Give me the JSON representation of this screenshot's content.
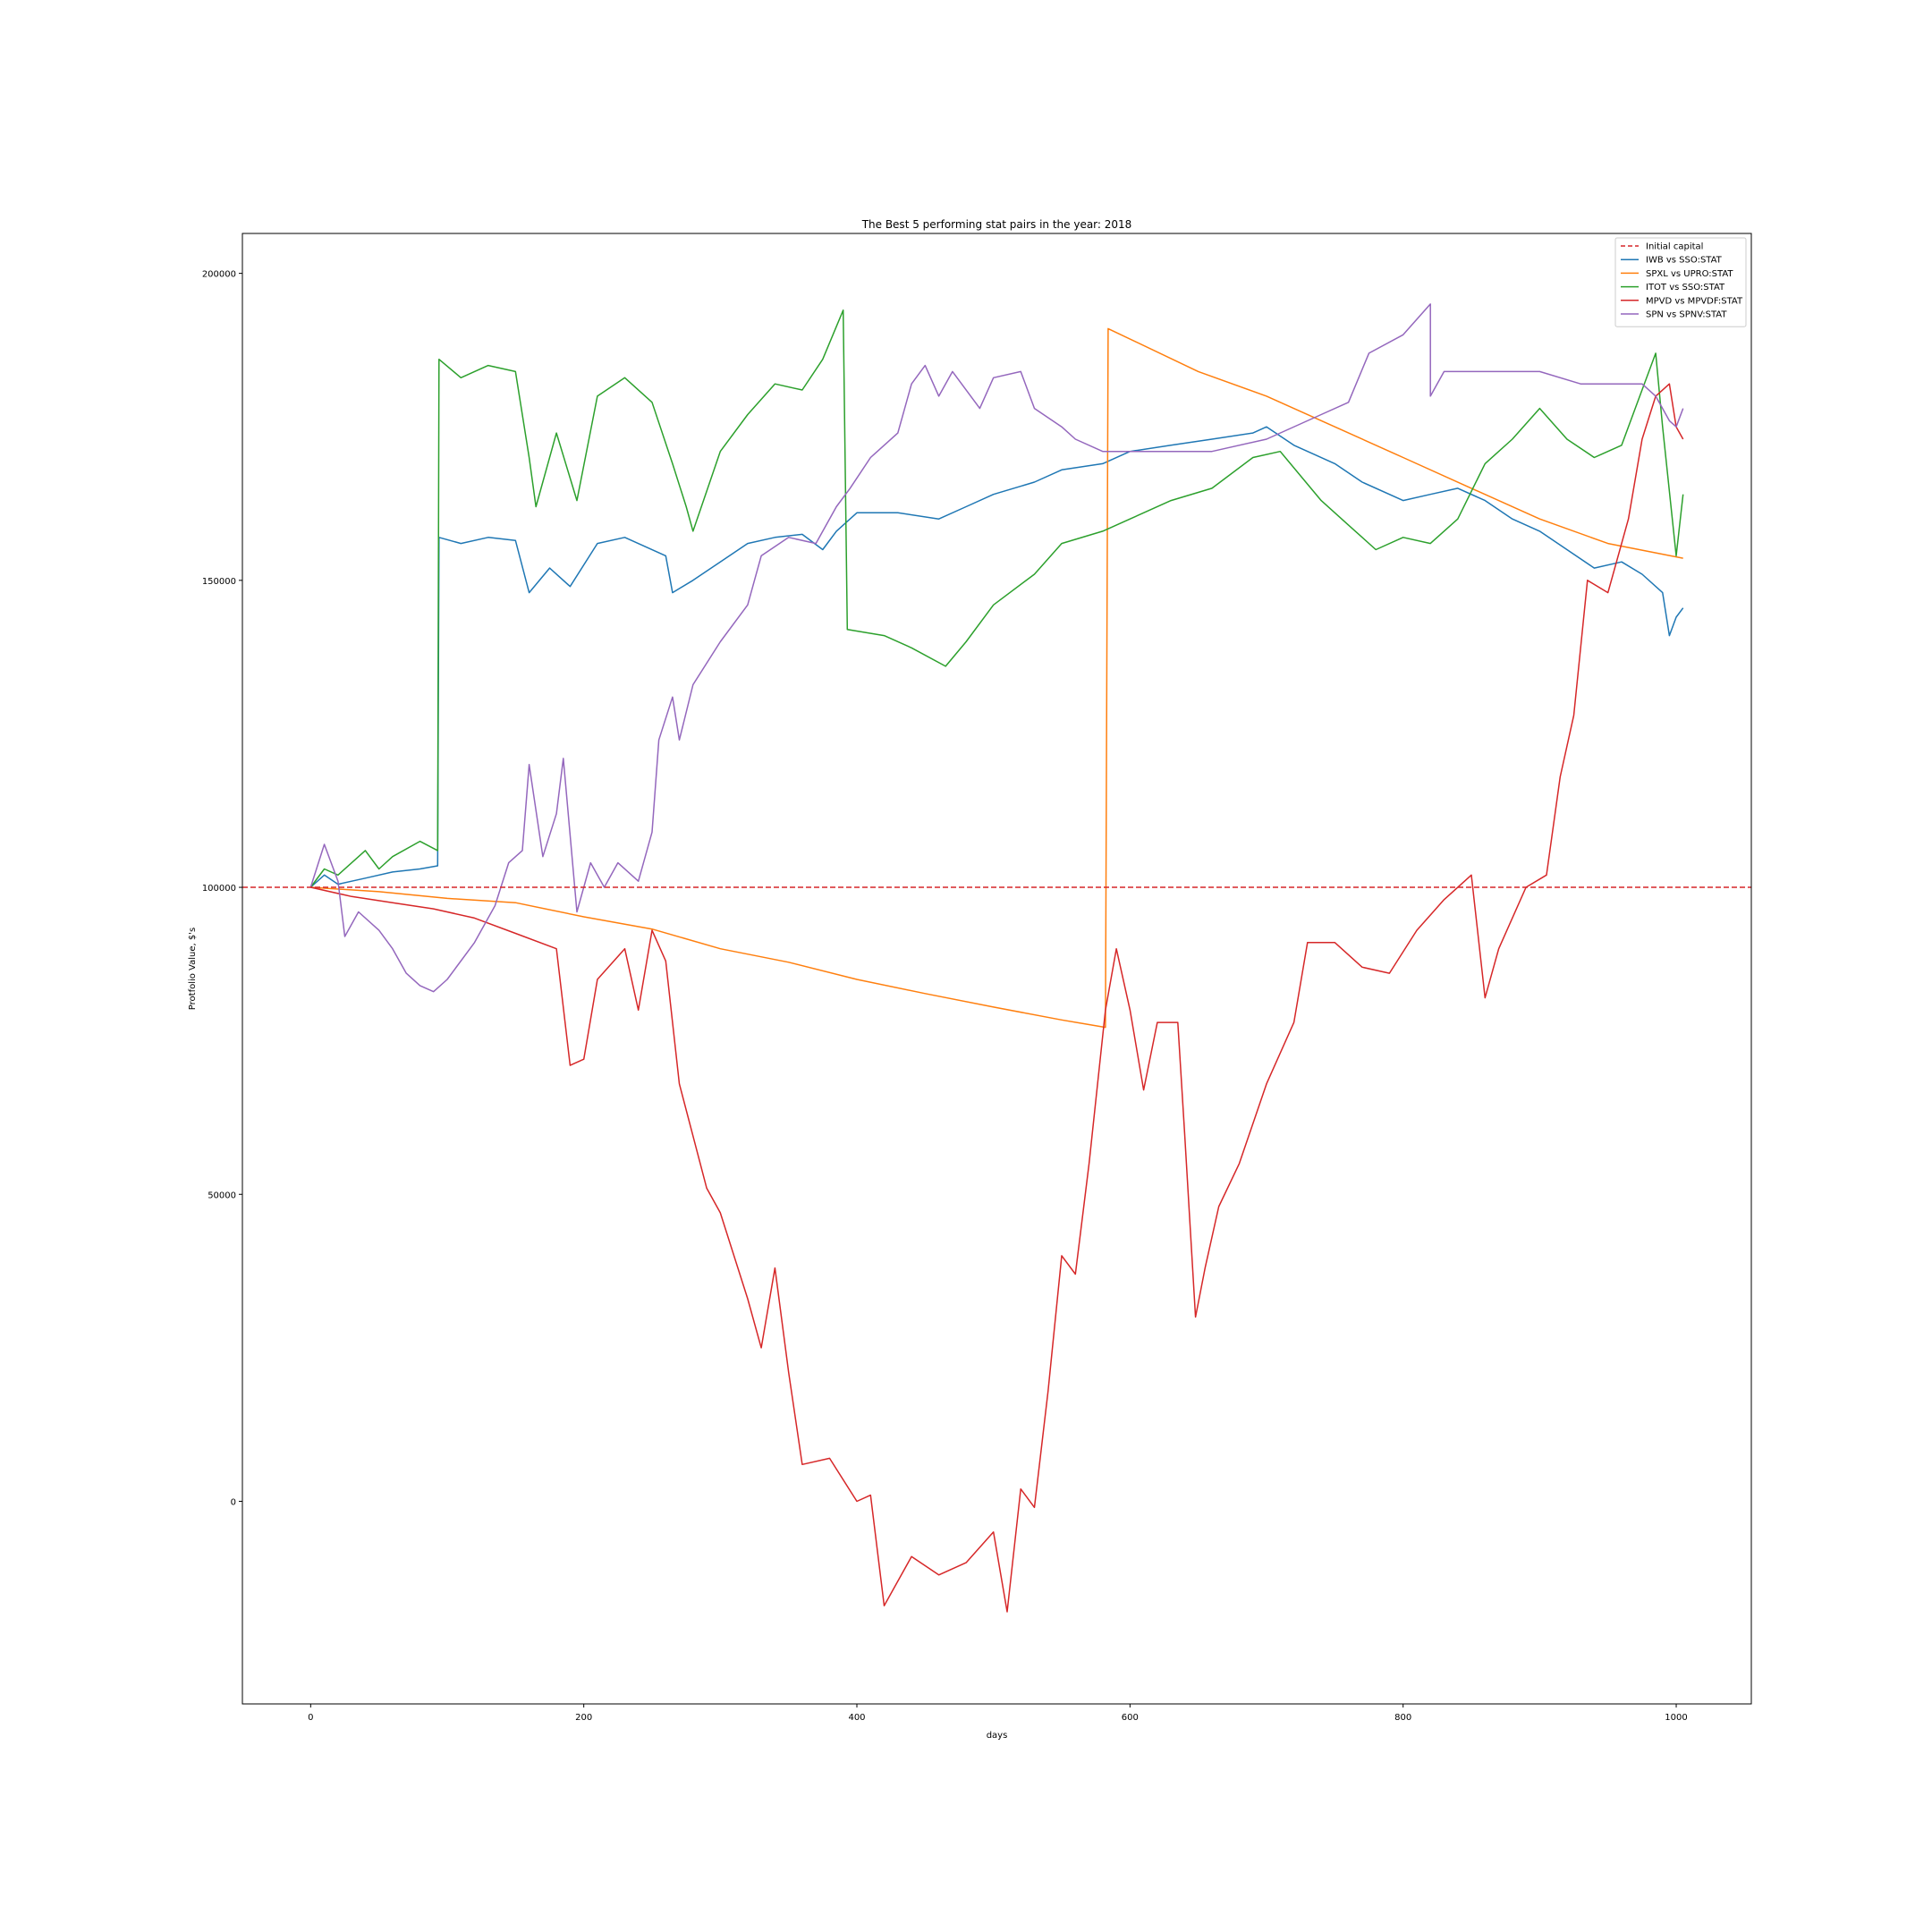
{
  "chart_data": {
    "type": "line",
    "title": "The Best 5 performing stat pairs in the year: 2018",
    "xlabel": "days",
    "ylabel": "Protfolio Value, $'s",
    "xlim": [
      -50,
      1055
    ],
    "ylim": [
      -33000,
      206500
    ],
    "xticks": [
      0,
      200,
      400,
      600,
      800,
      1000
    ],
    "yticks": [
      0,
      50000,
      100000,
      150000,
      200000
    ],
    "grid": false,
    "legend_position": "top-right",
    "reference_line": {
      "name": "Initial capital",
      "y": 100000,
      "color": "#d62728",
      "style": "dashed"
    },
    "series": [
      {
        "name": "IWB vs SSO:STAT",
        "color": "#1f77b4",
        "points": [
          [
            0,
            100000
          ],
          [
            10,
            102000
          ],
          [
            20,
            100500
          ],
          [
            40,
            101500
          ],
          [
            60,
            102500
          ],
          [
            80,
            103000
          ],
          [
            93,
            103500
          ],
          [
            94,
            157000
          ],
          [
            110,
            156000
          ],
          [
            130,
            157000
          ],
          [
            150,
            156500
          ],
          [
            160,
            148000
          ],
          [
            175,
            152000
          ],
          [
            190,
            149000
          ],
          [
            210,
            156000
          ],
          [
            230,
            157000
          ],
          [
            260,
            154000
          ],
          [
            265,
            148000
          ],
          [
            280,
            150000
          ],
          [
            300,
            153000
          ],
          [
            320,
            156000
          ],
          [
            340,
            157000
          ],
          [
            360,
            157500
          ],
          [
            375,
            155000
          ],
          [
            385,
            158000
          ],
          [
            400,
            161000
          ],
          [
            430,
            161000
          ],
          [
            460,
            160000
          ],
          [
            480,
            162000
          ],
          [
            500,
            164000
          ],
          [
            530,
            166000
          ],
          [
            550,
            168000
          ],
          [
            580,
            169000
          ],
          [
            600,
            171000
          ],
          [
            630,
            172000
          ],
          [
            660,
            173000
          ],
          [
            690,
            174000
          ],
          [
            700,
            175000
          ],
          [
            720,
            172000
          ],
          [
            750,
            169000
          ],
          [
            770,
            166000
          ],
          [
            800,
            163000
          ],
          [
            820,
            164000
          ],
          [
            840,
            165000
          ],
          [
            860,
            163000
          ],
          [
            880,
            160000
          ],
          [
            900,
            158000
          ],
          [
            920,
            155000
          ],
          [
            940,
            152000
          ],
          [
            960,
            153000
          ],
          [
            975,
            151000
          ],
          [
            990,
            148000
          ],
          [
            995,
            141000
          ],
          [
            1000,
            144000
          ],
          [
            1005,
            145500
          ]
        ]
      },
      {
        "name": "SPXL vs UPRO:STAT",
        "color": "#ff7f0e",
        "points": [
          [
            0,
            100000
          ],
          [
            50,
            99300
          ],
          [
            100,
            98200
          ],
          [
            150,
            97500
          ],
          [
            200,
            95200
          ],
          [
            250,
            93200
          ],
          [
            300,
            90000
          ],
          [
            350,
            87800
          ],
          [
            400,
            85000
          ],
          [
            450,
            82700
          ],
          [
            500,
            80500
          ],
          [
            550,
            78400
          ],
          [
            582,
            77200
          ],
          [
            584,
            191000
          ],
          [
            650,
            184000
          ],
          [
            700,
            180000
          ],
          [
            750,
            175000
          ],
          [
            800,
            170000
          ],
          [
            850,
            165000
          ],
          [
            900,
            160000
          ],
          [
            950,
            156000
          ],
          [
            1005,
            153600
          ]
        ]
      },
      {
        "name": "ITOT vs SSO:STAT",
        "color": "#2ca02c",
        "points": [
          [
            0,
            100000
          ],
          [
            10,
            103000
          ],
          [
            20,
            102000
          ],
          [
            40,
            106000
          ],
          [
            50,
            103000
          ],
          [
            60,
            105000
          ],
          [
            80,
            107500
          ],
          [
            93,
            106000
          ],
          [
            94,
            186000
          ],
          [
            110,
            183000
          ],
          [
            130,
            185000
          ],
          [
            150,
            184000
          ],
          [
            160,
            170000
          ],
          [
            165,
            162000
          ],
          [
            180,
            174000
          ],
          [
            195,
            163000
          ],
          [
            210,
            180000
          ],
          [
            230,
            183000
          ],
          [
            250,
            179000
          ],
          [
            265,
            169000
          ],
          [
            275,
            162000
          ],
          [
            280,
            158000
          ],
          [
            300,
            171000
          ],
          [
            320,
            177000
          ],
          [
            340,
            182000
          ],
          [
            360,
            181000
          ],
          [
            375,
            186000
          ],
          [
            390,
            194000
          ],
          [
            393,
            142000
          ],
          [
            420,
            141000
          ],
          [
            440,
            139000
          ],
          [
            465,
            136000
          ],
          [
            480,
            140000
          ],
          [
            500,
            146000
          ],
          [
            530,
            151000
          ],
          [
            550,
            156000
          ],
          [
            580,
            158000
          ],
          [
            600,
            160000
          ],
          [
            630,
            163000
          ],
          [
            660,
            165000
          ],
          [
            690,
            170000
          ],
          [
            710,
            171000
          ],
          [
            740,
            163000
          ],
          [
            760,
            159000
          ],
          [
            780,
            155000
          ],
          [
            800,
            157000
          ],
          [
            820,
            156000
          ],
          [
            840,
            160000
          ],
          [
            860,
            169000
          ],
          [
            880,
            173000
          ],
          [
            900,
            178000
          ],
          [
            920,
            173000
          ],
          [
            940,
            170000
          ],
          [
            960,
            172000
          ],
          [
            970,
            178000
          ],
          [
            985,
            187000
          ],
          [
            990,
            175000
          ],
          [
            1000,
            154000
          ],
          [
            1005,
            164000
          ]
        ]
      },
      {
        "name": "MPVD vs MPVDF:STAT",
        "color": "#d62728",
        "points": [
          [
            0,
            100000
          ],
          [
            30,
            98500
          ],
          [
            60,
            97500
          ],
          [
            90,
            96500
          ],
          [
            120,
            95000
          ],
          [
            150,
            92500
          ],
          [
            180,
            90000
          ],
          [
            190,
            71000
          ],
          [
            200,
            72000
          ],
          [
            210,
            85000
          ],
          [
            230,
            90000
          ],
          [
            240,
            80000
          ],
          [
            250,
            93000
          ],
          [
            260,
            88000
          ],
          [
            270,
            68000
          ],
          [
            290,
            51000
          ],
          [
            300,
            47000
          ],
          [
            320,
            33000
          ],
          [
            330,
            25000
          ],
          [
            340,
            38000
          ],
          [
            350,
            21000
          ],
          [
            360,
            6000
          ],
          [
            380,
            7000
          ],
          [
            400,
            0
          ],
          [
            410,
            1000
          ],
          [
            420,
            -17000
          ],
          [
            440,
            -9000
          ],
          [
            460,
            -12000
          ],
          [
            480,
            -10000
          ],
          [
            500,
            -5000
          ],
          [
            510,
            -18000
          ],
          [
            520,
            2000
          ],
          [
            530,
            -1000
          ],
          [
            540,
            18000
          ],
          [
            550,
            40000
          ],
          [
            560,
            37000
          ],
          [
            570,
            55000
          ],
          [
            582,
            80000
          ],
          [
            590,
            90000
          ],
          [
            600,
            80000
          ],
          [
            610,
            67000
          ],
          [
            620,
            78000
          ],
          [
            635,
            78000
          ],
          [
            640,
            60000
          ],
          [
            648,
            30000
          ],
          [
            655,
            38000
          ],
          [
            665,
            48000
          ],
          [
            680,
            55000
          ],
          [
            700,
            68000
          ],
          [
            720,
            78000
          ],
          [
            730,
            91000
          ],
          [
            750,
            91000
          ],
          [
            770,
            87000
          ],
          [
            790,
            86000
          ],
          [
            810,
            93000
          ],
          [
            830,
            98000
          ],
          [
            850,
            102000
          ],
          [
            860,
            82000
          ],
          [
            870,
            90000
          ],
          [
            890,
            100000
          ],
          [
            905,
            102000
          ],
          [
            915,
            118000
          ],
          [
            925,
            128000
          ],
          [
            935,
            150000
          ],
          [
            950,
            148000
          ],
          [
            965,
            160000
          ],
          [
            975,
            173000
          ],
          [
            985,
            180000
          ],
          [
            995,
            182000
          ],
          [
            1000,
            175000
          ],
          [
            1005,
            173000
          ]
        ]
      },
      {
        "name": "SPN vs SPNV:STAT",
        "color": "#9467bd",
        "points": [
          [
            0,
            100000
          ],
          [
            10,
            107000
          ],
          [
            20,
            101000
          ],
          [
            25,
            92000
          ],
          [
            35,
            96000
          ],
          [
            50,
            93000
          ],
          [
            60,
            90000
          ],
          [
            70,
            86000
          ],
          [
            80,
            84000
          ],
          [
            90,
            83000
          ],
          [
            100,
            85000
          ],
          [
            120,
            91000
          ],
          [
            135,
            97000
          ],
          [
            145,
            104000
          ],
          [
            155,
            106000
          ],
          [
            160,
            120000
          ],
          [
            170,
            105000
          ],
          [
            180,
            112000
          ],
          [
            185,
            121000
          ],
          [
            195,
            96000
          ],
          [
            205,
            104000
          ],
          [
            215,
            100000
          ],
          [
            225,
            104000
          ],
          [
            240,
            101000
          ],
          [
            250,
            109000
          ],
          [
            255,
            124000
          ],
          [
            265,
            131000
          ],
          [
            270,
            124000
          ],
          [
            280,
            133000
          ],
          [
            300,
            140000
          ],
          [
            320,
            146000
          ],
          [
            330,
            154000
          ],
          [
            350,
            157000
          ],
          [
            370,
            156000
          ],
          [
            385,
            162000
          ],
          [
            395,
            165000
          ],
          [
            410,
            170000
          ],
          [
            430,
            174000
          ],
          [
            440,
            182000
          ],
          [
            450,
            185000
          ],
          [
            460,
            180000
          ],
          [
            470,
            184000
          ],
          [
            490,
            178000
          ],
          [
            500,
            183000
          ],
          [
            520,
            184000
          ],
          [
            530,
            178000
          ],
          [
            550,
            175000
          ],
          [
            560,
            173000
          ],
          [
            580,
            171000
          ],
          [
            620,
            171000
          ],
          [
            660,
            171000
          ],
          [
            700,
            173000
          ],
          [
            740,
            177000
          ],
          [
            760,
            179000
          ],
          [
            775,
            187000
          ],
          [
            800,
            190000
          ],
          [
            820,
            195000
          ],
          [
            820,
            180000
          ],
          [
            830,
            184000
          ],
          [
            900,
            184000
          ],
          [
            930,
            182000
          ],
          [
            955,
            182000
          ],
          [
            975,
            182000
          ],
          [
            985,
            180000
          ],
          [
            995,
            176000
          ],
          [
            1000,
            175000
          ],
          [
            1005,
            178000
          ]
        ]
      }
    ]
  }
}
